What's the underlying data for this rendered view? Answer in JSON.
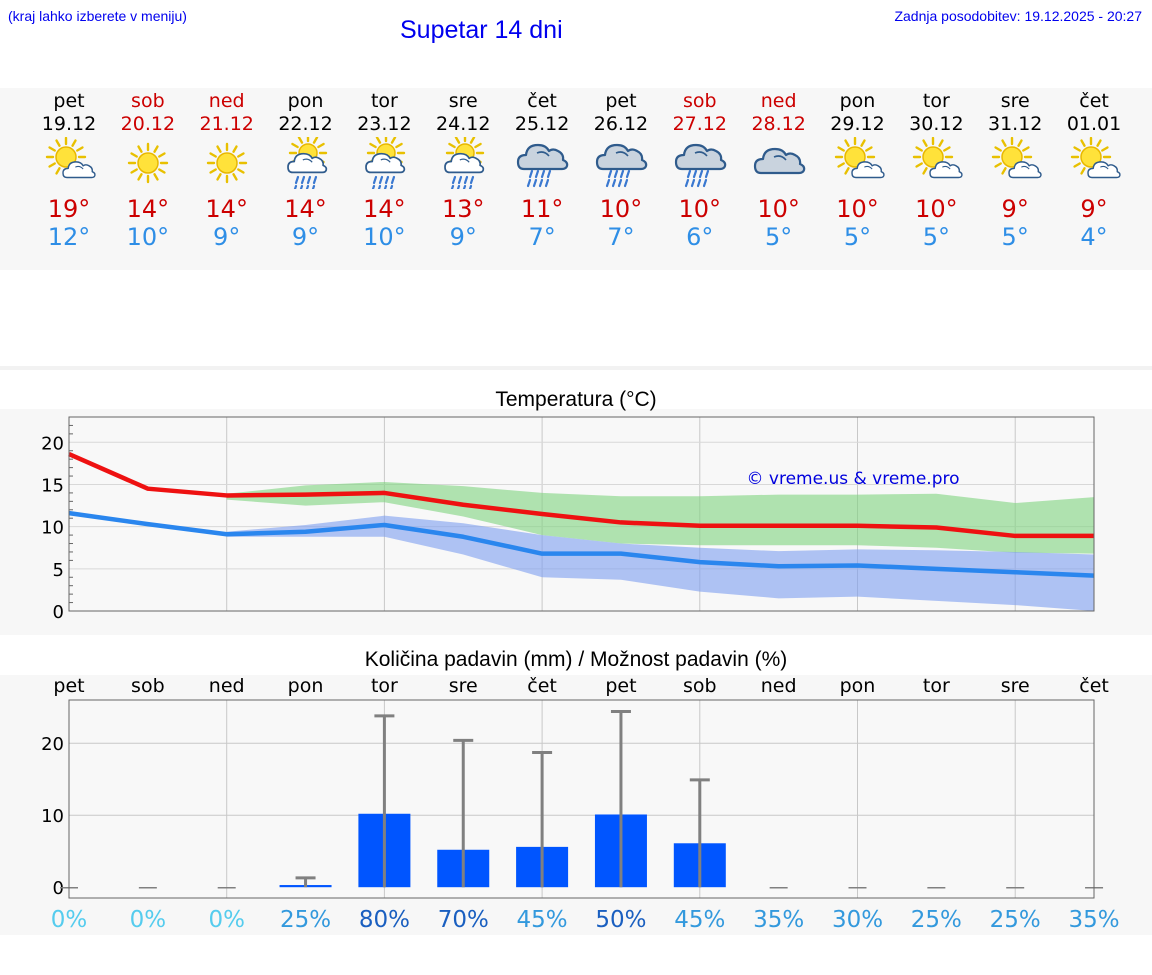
{
  "header": {
    "menu_hint": "(kraj lahko izberete v meniju)",
    "title": "Supetar 14 dni",
    "updated": "Zadnja posodobitev: 19.12.2025 - 20:27"
  },
  "colors": {
    "weekday": "#000000",
    "weekend": "#cc0000",
    "tmax": "#cc0000",
    "tmin": "#2e8ee6",
    "bar": "#0055ff"
  },
  "days": [
    {
      "name": "pet",
      "date": "19.12",
      "weekend": false,
      "icon": "sun-cloud-icon",
      "tmax": "19°",
      "tmin": "12°"
    },
    {
      "name": "sob",
      "date": "20.12",
      "weekend": true,
      "icon": "sun-icon",
      "tmax": "14°",
      "tmin": "10°"
    },
    {
      "name": "ned",
      "date": "21.12",
      "weekend": true,
      "icon": "sun-icon",
      "tmax": "14°",
      "tmin": "9°"
    },
    {
      "name": "pon",
      "date": "22.12",
      "weekend": false,
      "icon": "sun-rain-icon",
      "tmax": "14°",
      "tmin": "9°"
    },
    {
      "name": "tor",
      "date": "23.12",
      "weekend": false,
      "icon": "sun-rain-icon",
      "tmax": "14°",
      "tmin": "10°"
    },
    {
      "name": "sre",
      "date": "24.12",
      "weekend": false,
      "icon": "sun-rain-icon",
      "tmax": "13°",
      "tmin": "9°"
    },
    {
      "name": "čet",
      "date": "25.12",
      "weekend": false,
      "icon": "cloud-rain-icon",
      "tmax": "11°",
      "tmin": "7°"
    },
    {
      "name": "pet",
      "date": "26.12",
      "weekend": false,
      "icon": "cloud-rain-icon",
      "tmax": "10°",
      "tmin": "7°"
    },
    {
      "name": "sob",
      "date": "27.12",
      "weekend": true,
      "icon": "cloud-rain-icon",
      "tmax": "10°",
      "tmin": "6°"
    },
    {
      "name": "ned",
      "date": "28.12",
      "weekend": true,
      "icon": "cloud-icon",
      "tmax": "10°",
      "tmin": "5°"
    },
    {
      "name": "pon",
      "date": "29.12",
      "weekend": false,
      "icon": "sun-cloud-icon",
      "tmax": "10°",
      "tmin": "5°"
    },
    {
      "name": "tor",
      "date": "30.12",
      "weekend": false,
      "icon": "sun-cloud-icon",
      "tmax": "10°",
      "tmin": "5°"
    },
    {
      "name": "sre",
      "date": "31.12",
      "weekend": false,
      "icon": "sun-cloud-icon",
      "tmax": "9°",
      "tmin": "5°"
    },
    {
      "name": "čet",
      "date": "01.01",
      "weekend": false,
      "icon": "sun-cloud-icon",
      "tmax": "9°",
      "tmin": "4°"
    }
  ],
  "chart_data": [
    {
      "type": "line",
      "title": "Temperatura (°C)",
      "watermark": "© vreme.us & vreme.pro",
      "ylim": [
        0,
        23
      ],
      "yticks": [
        0,
        5,
        10,
        15,
        20
      ],
      "grid": true,
      "x": [
        0,
        1,
        2,
        3,
        4,
        5,
        6,
        7,
        8,
        9,
        10,
        11,
        12,
        13
      ],
      "series": [
        {
          "name": "max",
          "color": "#ee1111",
          "values": [
            18.6,
            14.5,
            13.7,
            13.8,
            14.0,
            12.6,
            11.5,
            10.5,
            10.1,
            10.1,
            10.1,
            9.9,
            8.9,
            8.9
          ]
        },
        {
          "name": "min",
          "color": "#2a86ee",
          "values": [
            11.6,
            10.3,
            9.1,
            9.4,
            10.2,
            8.8,
            6.8,
            6.8,
            5.8,
            5.3,
            5.4,
            5.0,
            4.6,
            4.2
          ]
        }
      ],
      "bands": [
        {
          "name": "max-range",
          "color": "#7ed37e",
          "low": [
            null,
            null,
            13.2,
            12.5,
            12.9,
            11.2,
            9.0,
            8.0,
            7.8,
            7.8,
            7.8,
            7.5,
            6.9,
            6.8
          ],
          "high": [
            null,
            null,
            13.9,
            14.9,
            15.3,
            14.8,
            14.0,
            13.6,
            13.6,
            13.8,
            13.8,
            13.9,
            12.8,
            13.5
          ]
        },
        {
          "name": "min-range",
          "color": "#7d9ff0",
          "low": [
            null,
            null,
            8.8,
            8.8,
            8.8,
            6.7,
            4.0,
            3.7,
            2.3,
            1.5,
            1.7,
            1.2,
            0.7,
            0.0
          ],
          "high": [
            null,
            null,
            9.4,
            10.2,
            11.3,
            10.4,
            9.0,
            8.0,
            7.5,
            7.1,
            7.3,
            7.2,
            7.0,
            6.7
          ]
        }
      ]
    },
    {
      "type": "bar",
      "title": "Količina padavin (mm) / Možnost padavin (%)",
      "categories": [
        "pet",
        "sob",
        "ned",
        "pon",
        "tor",
        "sre",
        "čet",
        "pet",
        "sob",
        "ned",
        "pon",
        "tor",
        "sre",
        "čet"
      ],
      "ylim": [
        -1.5,
        26
      ],
      "yticks": [
        0,
        10,
        20
      ],
      "values": [
        0,
        0,
        0,
        0.3,
        10.2,
        5.2,
        5.6,
        10.1,
        6.1,
        0,
        0,
        0,
        0,
        0
      ],
      "max_values": [
        0,
        0,
        0,
        1.3,
        23.8,
        20.4,
        18.7,
        24.4,
        14.9,
        0,
        0,
        0,
        0,
        0
      ],
      "probability": [
        "0%",
        "0%",
        "0%",
        "25%",
        "80%",
        "70%",
        "45%",
        "50%",
        "45%",
        "35%",
        "30%",
        "25%",
        "25%",
        "35%"
      ],
      "probability_colors": [
        "#55ccee",
        "#55ccee",
        "#55ccee",
        "#3399dd",
        "#1a5fc0",
        "#1a5fc0",
        "#3399dd",
        "#1a5fc0",
        "#3399dd",
        "#3399dd",
        "#3399dd",
        "#3399dd",
        "#3399dd",
        "#3399dd"
      ]
    }
  ]
}
